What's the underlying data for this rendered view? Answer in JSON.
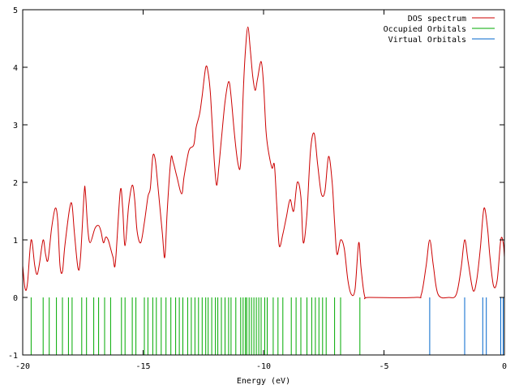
{
  "chart_data": {
    "type": "line",
    "title": "",
    "xlabel": "Energy (eV)",
    "ylabel": "",
    "xlim": [
      -20,
      0
    ],
    "ylim": [
      -1,
      5
    ],
    "x_ticks": [
      -20,
      -15,
      -10,
      -5,
      0
    ],
    "x_tick_labels": [
      "-20",
      "-15",
      "-10",
      "-5",
      "0"
    ],
    "y_ticks": [
      -1,
      0,
      1,
      2,
      3,
      4,
      5
    ],
    "y_tick_labels": [
      "-1",
      "0",
      "1",
      "2",
      "3",
      "4",
      "5"
    ],
    "grid": false,
    "legend_position": "top-right",
    "series": [
      {
        "name": "DOS spectrum",
        "color": "#cc0000",
        "style": "line",
        "points": [
          [
            -20.0,
            0.55
          ],
          [
            -19.9,
            0.15
          ],
          [
            -19.8,
            0.25
          ],
          [
            -19.65,
            1.0
          ],
          [
            -19.5,
            0.55
          ],
          [
            -19.4,
            0.4
          ],
          [
            -19.3,
            0.6
          ],
          [
            -19.15,
            1.0
          ],
          [
            -19.05,
            0.75
          ],
          [
            -18.95,
            0.65
          ],
          [
            -18.8,
            1.2
          ],
          [
            -18.65,
            1.55
          ],
          [
            -18.55,
            1.35
          ],
          [
            -18.45,
            0.55
          ],
          [
            -18.35,
            0.45
          ],
          [
            -18.25,
            0.9
          ],
          [
            -18.05,
            1.55
          ],
          [
            -17.95,
            1.6
          ],
          [
            -17.85,
            1.1
          ],
          [
            -17.7,
            0.5
          ],
          [
            -17.6,
            0.7
          ],
          [
            -17.45,
            1.8
          ],
          [
            -17.4,
            1.85
          ],
          [
            -17.3,
            1.2
          ],
          [
            -17.2,
            0.95
          ],
          [
            -17.0,
            1.2
          ],
          [
            -16.85,
            1.25
          ],
          [
            -16.75,
            1.15
          ],
          [
            -16.65,
            0.95
          ],
          [
            -16.55,
            1.05
          ],
          [
            -16.45,
            1.0
          ],
          [
            -16.35,
            0.85
          ],
          [
            -16.25,
            0.7
          ],
          [
            -16.15,
            0.6
          ],
          [
            -15.95,
            1.85
          ],
          [
            -15.85,
            1.55
          ],
          [
            -15.75,
            0.9
          ],
          [
            -15.6,
            1.6
          ],
          [
            -15.45,
            1.95
          ],
          [
            -15.35,
            1.7
          ],
          [
            -15.25,
            1.15
          ],
          [
            -15.1,
            0.95
          ],
          [
            -14.95,
            1.3
          ],
          [
            -14.8,
            1.75
          ],
          [
            -14.7,
            1.9
          ],
          [
            -14.6,
            2.45
          ],
          [
            -14.5,
            2.4
          ],
          [
            -14.4,
            2.0
          ],
          [
            -14.2,
            1.1
          ],
          [
            -14.1,
            0.7
          ],
          [
            -14.0,
            1.5
          ],
          [
            -13.85,
            2.4
          ],
          [
            -13.75,
            2.35
          ],
          [
            -13.6,
            2.1
          ],
          [
            -13.4,
            1.8
          ],
          [
            -13.3,
            2.1
          ],
          [
            -13.1,
            2.55
          ],
          [
            -12.9,
            2.65
          ],
          [
            -12.8,
            2.95
          ],
          [
            -12.65,
            3.2
          ],
          [
            -12.55,
            3.5
          ],
          [
            -12.4,
            4.0
          ],
          [
            -12.3,
            3.9
          ],
          [
            -12.2,
            3.5
          ],
          [
            -12.05,
            2.4
          ],
          [
            -11.95,
            1.95
          ],
          [
            -11.85,
            2.3
          ],
          [
            -11.75,
            2.75
          ],
          [
            -11.6,
            3.4
          ],
          [
            -11.45,
            3.75
          ],
          [
            -11.35,
            3.5
          ],
          [
            -11.2,
            2.8
          ],
          [
            -11.05,
            2.3
          ],
          [
            -10.95,
            2.35
          ],
          [
            -10.85,
            3.5
          ],
          [
            -10.75,
            4.3
          ],
          [
            -10.65,
            4.7
          ],
          [
            -10.55,
            4.3
          ],
          [
            -10.45,
            3.85
          ],
          [
            -10.35,
            3.6
          ],
          [
            -10.25,
            3.8
          ],
          [
            -10.1,
            4.1
          ],
          [
            -10.0,
            3.7
          ],
          [
            -9.9,
            2.9
          ],
          [
            -9.8,
            2.55
          ],
          [
            -9.65,
            2.25
          ],
          [
            -9.55,
            2.3
          ],
          [
            -9.45,
            1.6
          ],
          [
            -9.35,
            0.9
          ],
          [
            -9.2,
            1.1
          ],
          [
            -9.05,
            1.4
          ],
          [
            -8.9,
            1.7
          ],
          [
            -8.75,
            1.5
          ],
          [
            -8.6,
            2.0
          ],
          [
            -8.45,
            1.75
          ],
          [
            -8.35,
            0.95
          ],
          [
            -8.2,
            1.45
          ],
          [
            -8.05,
            2.55
          ],
          [
            -7.9,
            2.85
          ],
          [
            -7.75,
            2.3
          ],
          [
            -7.6,
            1.8
          ],
          [
            -7.45,
            1.85
          ],
          [
            -7.3,
            2.45
          ],
          [
            -7.15,
            2.0
          ],
          [
            -7.05,
            1.3
          ],
          [
            -6.95,
            0.75
          ],
          [
            -6.8,
            1.0
          ],
          [
            -6.65,
            0.85
          ],
          [
            -6.5,
            0.3
          ],
          [
            -6.35,
            0.05
          ],
          [
            -6.2,
            0.15
          ],
          [
            -6.05,
            0.95
          ],
          [
            -5.95,
            0.5
          ],
          [
            -5.8,
            0.02
          ],
          [
            -5.6,
            0.0
          ],
          [
            -3.7,
            0.0
          ],
          [
            -3.45,
            0.05
          ],
          [
            -3.25,
            0.55
          ],
          [
            -3.1,
            1.0
          ],
          [
            -2.95,
            0.55
          ],
          [
            -2.75,
            0.05
          ],
          [
            -2.3,
            0.0
          ],
          [
            -2.0,
            0.05
          ],
          [
            -1.8,
            0.5
          ],
          [
            -1.65,
            1.0
          ],
          [
            -1.5,
            0.6
          ],
          [
            -1.3,
            0.12
          ],
          [
            -1.15,
            0.3
          ],
          [
            -1.0,
            0.85
          ],
          [
            -0.85,
            1.55
          ],
          [
            -0.7,
            1.2
          ],
          [
            -0.6,
            0.7
          ],
          [
            -0.45,
            0.2
          ],
          [
            -0.3,
            0.3
          ],
          [
            -0.15,
            1.0
          ],
          [
            -0.05,
            0.95
          ],
          [
            0.0,
            0.7
          ]
        ]
      },
      {
        "name": "Occupied Orbitals",
        "color": "#00aa00",
        "style": "impulse",
        "base": -1,
        "top": 0,
        "x": [
          -19.65,
          -19.15,
          -18.9,
          -18.6,
          -18.35,
          -18.1,
          -17.95,
          -17.55,
          -17.35,
          -17.05,
          -16.85,
          -16.6,
          -16.35,
          -15.9,
          -15.75,
          -15.45,
          -15.3,
          -14.95,
          -14.8,
          -14.6,
          -14.45,
          -14.25,
          -14.05,
          -13.85,
          -13.65,
          -13.5,
          -13.35,
          -13.15,
          -13.0,
          -12.85,
          -12.7,
          -12.55,
          -12.4,
          -12.3,
          -12.15,
          -12.0,
          -11.9,
          -11.75,
          -11.6,
          -11.45,
          -11.35,
          -11.15,
          -10.95,
          -10.85,
          -10.75,
          -10.7,
          -10.6,
          -10.5,
          -10.4,
          -10.3,
          -10.2,
          -10.1,
          -9.95,
          -9.85,
          -9.6,
          -9.4,
          -9.2,
          -8.85,
          -8.65,
          -8.45,
          -8.2,
          -8.0,
          -7.85,
          -7.7,
          -7.55,
          -7.4,
          -7.05,
          -6.8,
          -6.0
        ]
      },
      {
        "name": "Virtual Orbitals",
        "color": "#0066cc",
        "style": "impulse",
        "base": -1,
        "top": 0,
        "x": [
          -3.1,
          -1.65,
          -0.9,
          -0.75,
          -0.15,
          -0.05
        ]
      }
    ]
  }
}
